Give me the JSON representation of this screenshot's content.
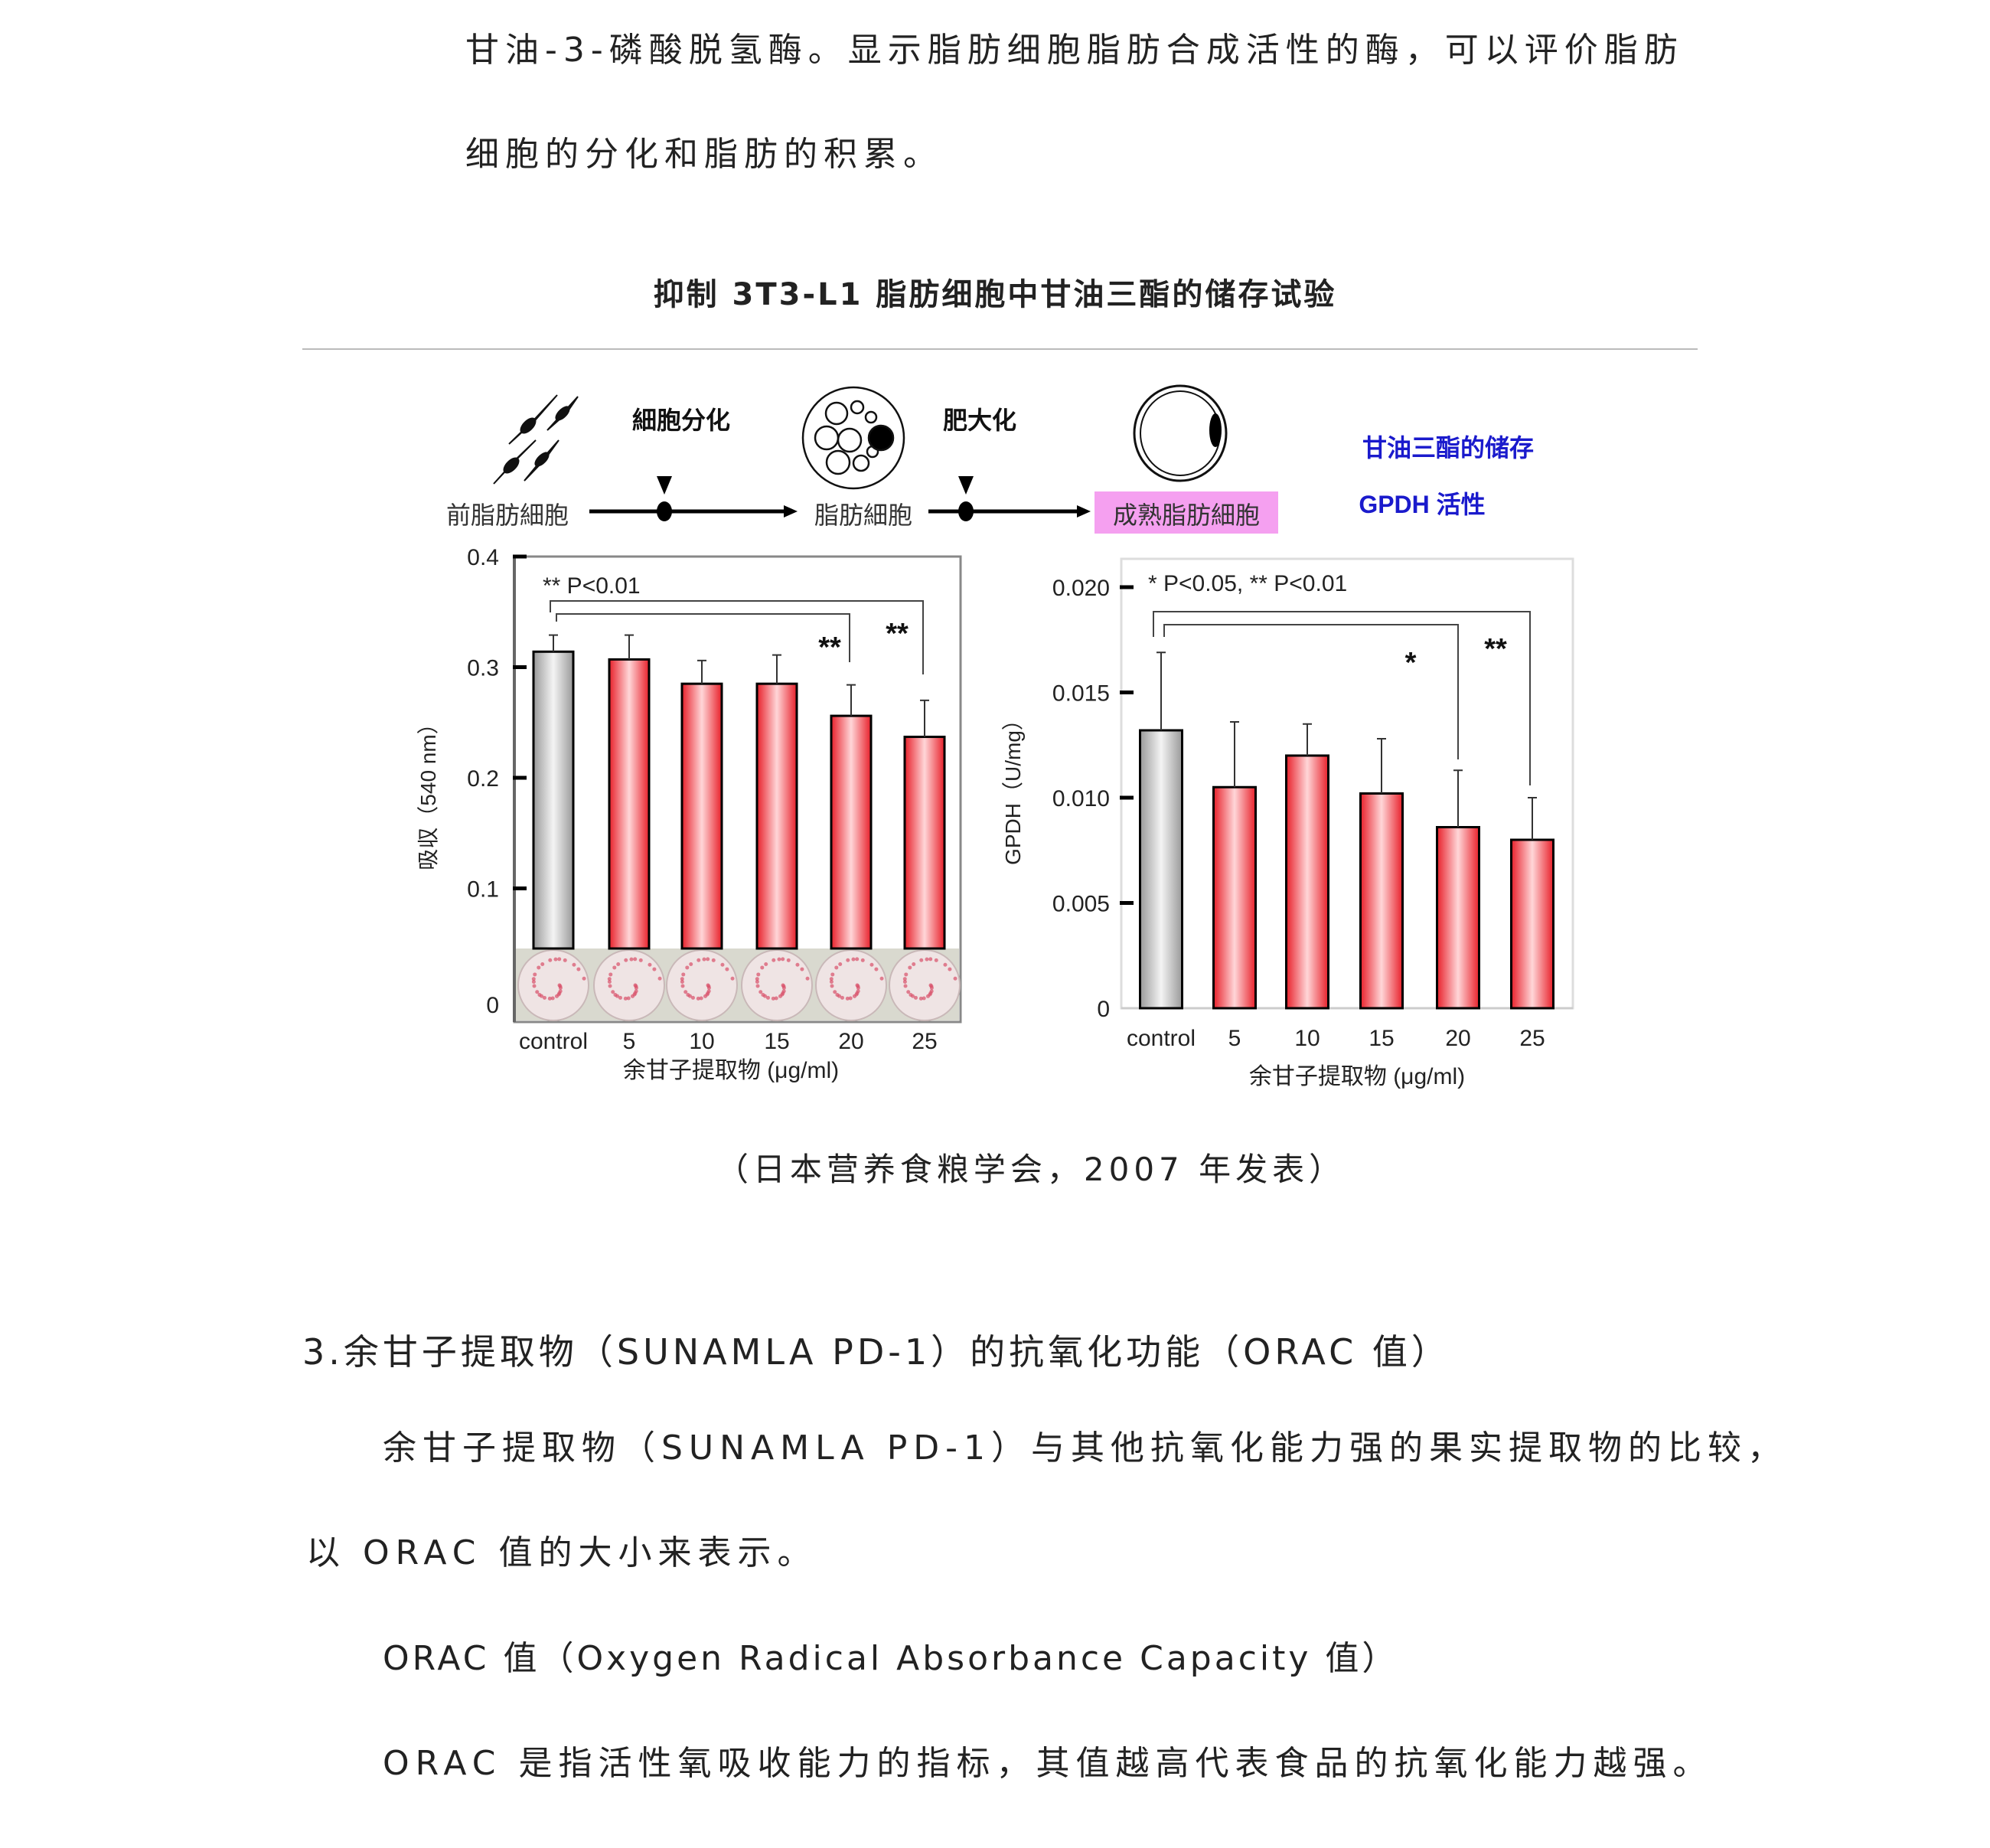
{
  "text": {
    "line1": "甘油-3-磷酸脱氢酶。显示脂肪细胞脂肪合成活性的酶，可以评价脂肪",
    "line2": "细胞的分化和脂肪的积累。",
    "figure_title": "抑制 3T3-L1 脂肪细胞中甘油三酯的储存试验",
    "caption": "（日本营养食粮学会，2007 年发表）",
    "section_heading": "3.余甘子提取物（SUNAMLA PD-1）的抗氧化功能（ORAC 值）",
    "para1": "余甘子提取物（SUNAMLA PD-1）与其他抗氧化能力强的果实提取物的比较，",
    "para2": "以 ORAC 值的大小来表示。",
    "para3": "ORAC 值（Oxygen Radical Absorbance Capacity 值）",
    "para4": "ORAC 是指活性氧吸收能力的指标，其值越高代表食品的抗氧化能力越强。"
  },
  "diagram": {
    "stage1": "前脂肪細胞",
    "step1": "細胞分化",
    "stage2": "脂肪細胞",
    "step2": "肥大化",
    "stage3": "成熟脂肪細胞",
    "measure1": "甘油三酯的储存",
    "measure2": "GPDH 活性",
    "highlight_color": "#f5a0f0",
    "measure_color": "#1a1acc"
  },
  "chart_data": [
    {
      "type": "bar",
      "categories": [
        "control",
        "5",
        "10",
        "15",
        "20",
        "25"
      ],
      "values": [
        0.314,
        0.307,
        0.285,
        0.285,
        0.256,
        0.237
      ],
      "error_upper": [
        0.329,
        0.329,
        0.306,
        0.311,
        0.284,
        0.27
      ],
      "xlabel": "余甘子提取物 (μg/ml)",
      "ylabel": "吸収（540 nm）",
      "ylim": [
        0,
        0.4
      ],
      "yticks": [
        "0",
        "0.1",
        "0.2",
        "0.3",
        "0.4"
      ],
      "annotation": "** P<0.01",
      "significance": [
        {
          "category": "20",
          "mark": "**"
        },
        {
          "category": "25",
          "mark": "**"
        }
      ],
      "bar_colors": {
        "control": "#d8d8d8",
        "treated": "#f04848"
      },
      "well_images": true
    },
    {
      "type": "bar",
      "categories": [
        "control",
        "5",
        "10",
        "15",
        "20",
        "25"
      ],
      "values": [
        0.0132,
        0.0105,
        0.012,
        0.0102,
        0.0086,
        0.008
      ],
      "error_upper": [
        0.0169,
        0.0136,
        0.0135,
        0.0128,
        0.0113,
        0.01
      ],
      "xlabel": "余甘子提取物 (μg/ml)",
      "ylabel": "GPDH（U/mg）",
      "ylim": [
        0,
        0.02
      ],
      "yticks": [
        "0",
        "0.005",
        "0.010",
        "0.015",
        "0.020"
      ],
      "annotation": "* P<0.05, ** P<0.01",
      "significance": [
        {
          "category": "20",
          "mark": "*"
        },
        {
          "category": "25",
          "mark": "**"
        }
      ],
      "bar_colors": {
        "control": "#d8d8d8",
        "treated": "#f04848"
      }
    }
  ]
}
